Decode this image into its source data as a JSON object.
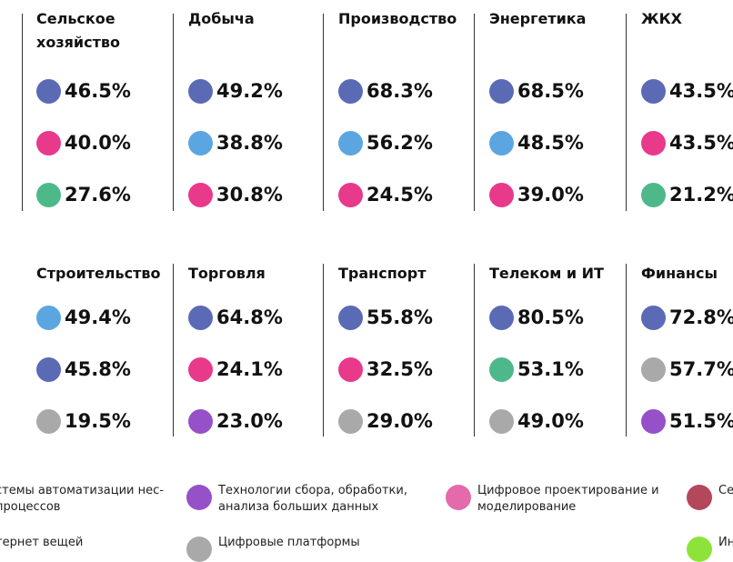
{
  "sectors": [
    {
      "name": "Сельское хозяйство",
      "items": [
        {
          "value": "46.5%",
          "color": "#5b6ab4"
        },
        {
          "value": "40.0%",
          "color": "#e8398b"
        },
        {
          "value": "27.6%",
          "color": "#4db98b"
        }
      ]
    },
    {
      "name": "Добыча",
      "items": [
        {
          "value": "49.2%",
          "color": "#5b6ab4"
        },
        {
          "value": "38.8%",
          "color": "#5ba6e0"
        },
        {
          "value": "30.8%",
          "color": "#e8398b"
        }
      ]
    },
    {
      "name": "Производство",
      "items": [
        {
          "value": "68.3%",
          "color": "#5b6ab4"
        },
        {
          "value": "56.2%",
          "color": "#5ba6e0"
        },
        {
          "value": "24.5%",
          "color": "#e8398b"
        }
      ]
    },
    {
      "name": "Энергетика",
      "items": [
        {
          "value": "68.5%",
          "color": "#5b6ab4"
        },
        {
          "value": "48.5%",
          "color": "#5ba6e0"
        },
        {
          "value": "39.0%",
          "color": "#e8398b"
        }
      ]
    },
    {
      "name": "ЖКХ",
      "items": [
        {
          "value": "43.5%",
          "color": "#5b6ab4"
        },
        {
          "value": "43.5%",
          "color": "#e8398b"
        },
        {
          "value": "21.2%",
          "color": "#4db98b"
        }
      ]
    },
    {
      "name": "Строительство",
      "items": [
        {
          "value": "49.4%",
          "color": "#5ba6e0"
        },
        {
          "value": "45.8%",
          "color": "#5b6ab4"
        },
        {
          "value": "19.5%",
          "color": "#a9a9a9"
        }
      ]
    },
    {
      "name": "Торговля",
      "items": [
        {
          "value": "64.8%",
          "color": "#5b6ab4"
        },
        {
          "value": "24.1%",
          "color": "#e8398b"
        },
        {
          "value": "23.0%",
          "color": "#9650c8"
        }
      ]
    },
    {
      "name": "Транспорт",
      "items": [
        {
          "value": "55.8%",
          "color": "#5b6ab4"
        },
        {
          "value": "32.5%",
          "color": "#e8398b"
        },
        {
          "value": "29.0%",
          "color": "#a9a9a9"
        }
      ]
    },
    {
      "name": "Телеком и ИТ",
      "items": [
        {
          "value": "80.5%",
          "color": "#5b6ab4"
        },
        {
          "value": "53.1%",
          "color": "#4db98b"
        },
        {
          "value": "49.0%",
          "color": "#a9a9a9"
        }
      ]
    },
    {
      "name": "Финансы",
      "items": [
        {
          "value": "72.8%",
          "color": "#5b6ab4"
        },
        {
          "value": "57.7%",
          "color": "#a9a9a9"
        },
        {
          "value": "51.5%",
          "color": "#9650c8"
        }
      ]
    }
  ],
  "legend": [
    {
      "label": "стемы автоматизации нес-процессов",
      "color": "#5ba6e0"
    },
    {
      "label": "Технологии сбора, обработки, анализа больших данных",
      "color": "#9650c8"
    },
    {
      "label": "Цифровое проектирование и моделирование",
      "color": "#e46aac"
    },
    {
      "label": "Се би",
      "color": "#b5475a"
    },
    {
      "label": "тернет вещей",
      "color": "#4db98b"
    },
    {
      "label": "Цифровые платформы",
      "color": "#a9a9a9"
    },
    {
      "label": "Ин",
      "color": "#8ee33a"
    }
  ]
}
